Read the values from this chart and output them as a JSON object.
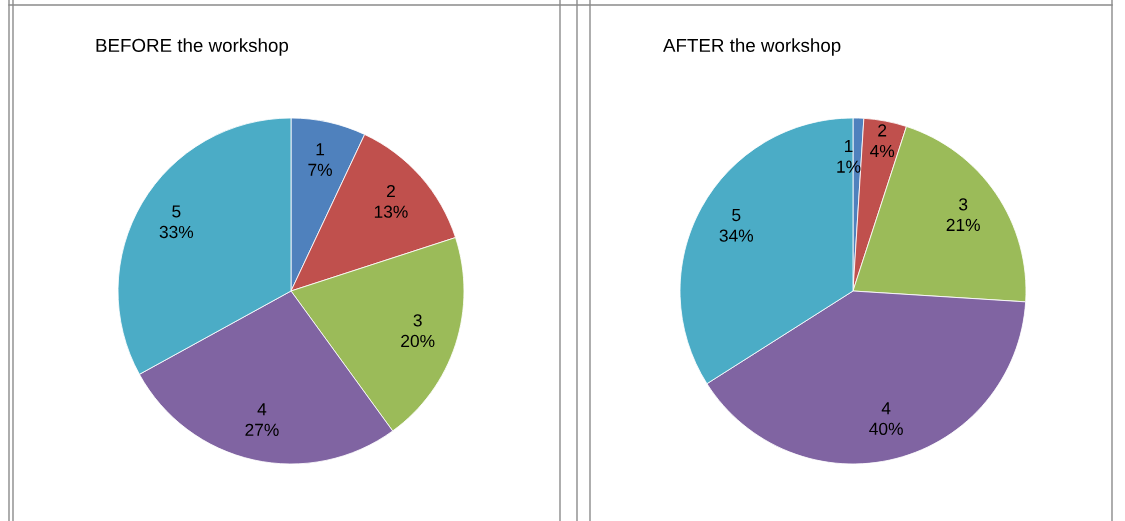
{
  "chart_data": [
    {
      "type": "pie",
      "title": "BEFORE the workshop",
      "categories": [
        "1",
        "2",
        "3",
        "4",
        "5"
      ],
      "values": [
        7,
        13,
        20,
        27,
        33
      ],
      "value_labels": [
        "7%",
        "13%",
        "20%",
        "27%",
        "33%"
      ],
      "colors": [
        "#4f81bd",
        "#c0504d",
        "#9bbb59",
        "#8064a2",
        "#4bacc6"
      ]
    },
    {
      "type": "pie",
      "title": "AFTER the workshop",
      "categories": [
        "1",
        "2",
        "3",
        "4",
        "5"
      ],
      "values": [
        1,
        4,
        21,
        40,
        34
      ],
      "value_labels": [
        "1%",
        "4%",
        "21%",
        "40%",
        "34%"
      ],
      "colors": [
        "#4f81bd",
        "#c0504d",
        "#9bbb59",
        "#8064a2",
        "#4bacc6"
      ]
    }
  ]
}
